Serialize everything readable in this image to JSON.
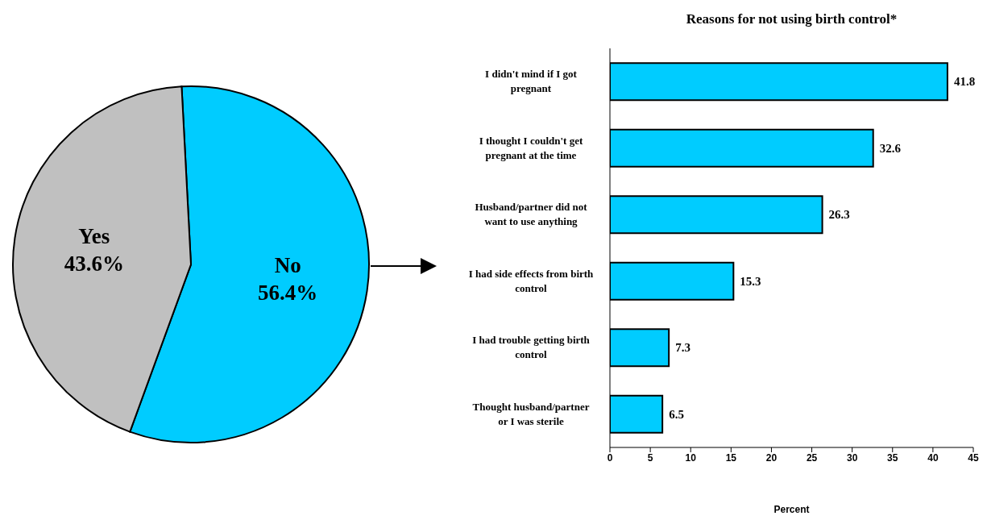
{
  "chart_data": [
    {
      "type": "pie",
      "categories": [
        "No",
        "Yes"
      ],
      "values": [
        56.4,
        43.6
      ],
      "colors": [
        "#00ccff",
        "#c0c0c0"
      ],
      "value_labels": [
        "56.4%",
        "43.6%"
      ]
    },
    {
      "type": "bar",
      "orientation": "horizontal",
      "title": "Reasons for not using birth control*",
      "xlabel": "Percent",
      "categories": [
        "I didn't mind if I got pregnant",
        "I thought I couldn't get pregnant at the time",
        "Husband/partner did not want to use anything",
        "I had side effects from birth control",
        "I had trouble getting birth control",
        "Thought husband/partner or I was sterile"
      ],
      "values": [
        41.8,
        32.6,
        26.3,
        15.3,
        7.3,
        6.5
      ],
      "color": "#00ccff",
      "xlim": [
        0,
        45
      ],
      "xticks": [
        0,
        5,
        10,
        15,
        20,
        25,
        30,
        35,
        40,
        45
      ],
      "data_labels": true
    }
  ]
}
